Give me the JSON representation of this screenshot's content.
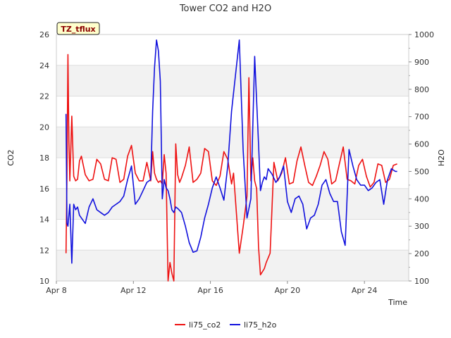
{
  "chart_data": {
    "type": "line",
    "title": "Tower CO2 and H2O",
    "badge": "TZ_tflux",
    "xlabel": "Time",
    "ylabel_left": "CO2",
    "ylabel_right": "H2O",
    "x_range_days": [
      0,
      18.3
    ],
    "x_ticks": [
      {
        "day": 0,
        "label": "Apr 8"
      },
      {
        "day": 4,
        "label": "Apr 12"
      },
      {
        "day": 8,
        "label": "Apr 16"
      },
      {
        "day": 12,
        "label": "Apr 20"
      },
      {
        "day": 16,
        "label": "Apr 24"
      }
    ],
    "y_left": {
      "min": 10,
      "max": 26,
      "ticks": [
        10,
        12,
        14,
        16,
        18,
        20,
        22,
        24,
        26
      ]
    },
    "y_right": {
      "min": 100,
      "max": 1000,
      "ticks": [
        100,
        200,
        300,
        400,
        500,
        600,
        700,
        800,
        900,
        1000
      ]
    },
    "grid": true,
    "legend_position": "bottom-center",
    "series": [
      {
        "name": "li75_co2",
        "axis": "left",
        "color": "#ee1111",
        "x": [
          0.5,
          0.55,
          0.6,
          0.65,
          0.7,
          0.8,
          0.9,
          1.0,
          1.1,
          1.2,
          1.3,
          1.5,
          1.7,
          1.9,
          2.1,
          2.3,
          2.5,
          2.7,
          2.9,
          3.1,
          3.3,
          3.5,
          3.7,
          3.9,
          4.1,
          4.3,
          4.5,
          4.7,
          4.9,
          5.0,
          5.1,
          5.2,
          5.3,
          5.4,
          5.5,
          5.6,
          5.7,
          5.8,
          5.9,
          6.0,
          6.1,
          6.2,
          6.3,
          6.4,
          6.5,
          6.7,
          6.9,
          7.1,
          7.3,
          7.5,
          7.7,
          7.9,
          8.1,
          8.3,
          8.5,
          8.7,
          8.9,
          9.1,
          9.2,
          9.5,
          9.7,
          9.8,
          9.9,
          10.0,
          10.1,
          10.2,
          10.3,
          10.4,
          10.5,
          10.6,
          10.8,
          10.9,
          11.1,
          11.3,
          11.5,
          11.7,
          11.9,
          12.1,
          12.3,
          12.5,
          12.7,
          12.9,
          13.1,
          13.3,
          13.5,
          13.7,
          13.9,
          14.1,
          14.3,
          14.5,
          14.7,
          14.9,
          15.1,
          15.3,
          15.5,
          15.7,
          15.9,
          16.1,
          16.3,
          16.5,
          16.7,
          16.9,
          17.1,
          17.3,
          17.5,
          17.7
        ],
        "values": [
          11.8,
          16.8,
          24.7,
          19.0,
          16.5,
          20.7,
          16.8,
          16.5,
          16.6,
          17.8,
          18.1,
          16.9,
          16.5,
          16.6,
          17.9,
          17.6,
          16.6,
          16.5,
          18.0,
          17.9,
          16.4,
          16.6,
          18.1,
          18.8,
          17.0,
          16.5,
          16.5,
          17.7,
          16.5,
          18.4,
          17.0,
          16.6,
          16.4,
          16.5,
          16.3,
          18.2,
          17.0,
          10.0,
          11.2,
          10.5,
          10.0,
          18.9,
          16.9,
          16.4,
          16.7,
          17.5,
          18.7,
          16.4,
          16.6,
          17.0,
          18.6,
          18.4,
          16.5,
          16.2,
          16.8,
          18.4,
          17.9,
          16.3,
          17.0,
          11.8,
          13.5,
          14.5,
          15.5,
          23.2,
          16.5,
          18.0,
          16.5,
          16.0,
          12.2,
          10.4,
          10.8,
          11.2,
          11.8,
          17.7,
          16.5,
          17.0,
          18.0,
          16.3,
          16.4,
          17.8,
          18.7,
          17.5,
          16.4,
          16.2,
          16.8,
          17.5,
          18.4,
          17.9,
          16.3,
          16.5,
          17.6,
          18.7,
          16.6,
          16.5,
          16.3,
          17.5,
          17.9,
          16.8,
          16.1,
          16.4,
          17.6,
          17.5,
          16.4,
          16.6,
          17.5,
          17.6
        ]
      },
      {
        "name": "li75_h2o",
        "axis": "right",
        "color": "#1111dd",
        "x": [
          0.5,
          0.55,
          0.6,
          0.7,
          0.8,
          0.9,
          1.0,
          1.1,
          1.2,
          1.3,
          1.5,
          1.7,
          1.9,
          2.1,
          2.3,
          2.5,
          2.7,
          2.9,
          3.1,
          3.3,
          3.5,
          3.7,
          3.9,
          4.1,
          4.3,
          4.5,
          4.7,
          4.9,
          5.0,
          5.1,
          5.2,
          5.3,
          5.4,
          5.5,
          5.6,
          5.7,
          5.8,
          5.9,
          6.0,
          6.1,
          6.2,
          6.3,
          6.5,
          6.7,
          6.9,
          7.1,
          7.3,
          7.5,
          7.7,
          7.9,
          8.1,
          8.3,
          8.5,
          8.7,
          8.9,
          9.1,
          9.3,
          9.5,
          9.7,
          9.9,
          10.1,
          10.3,
          10.5,
          10.6,
          10.7,
          10.8,
          10.9,
          11.0,
          11.2,
          11.4,
          11.6,
          11.8,
          12.0,
          12.2,
          12.4,
          12.6,
          12.8,
          13.0,
          13.2,
          13.4,
          13.6,
          13.8,
          14.0,
          14.2,
          14.4,
          14.6,
          14.8,
          15.0,
          15.2,
          15.4,
          15.6,
          15.8,
          16.0,
          16.2,
          16.4,
          16.6,
          16.8,
          17.0,
          17.2,
          17.4,
          17.6,
          17.7
        ],
        "values": [
          710,
          310,
          300,
          380,
          165,
          380,
          360,
          370,
          340,
          330,
          310,
          370,
          400,
          360,
          350,
          340,
          350,
          370,
          380,
          390,
          410,
          470,
          520,
          380,
          400,
          430,
          460,
          470,
          720,
          880,
          980,
          940,
          830,
          400,
          470,
          440,
          430,
          400,
          360,
          350,
          370,
          365,
          350,
          300,
          240,
          205,
          210,
          260,
          330,
          380,
          440,
          480,
          440,
          395,
          520,
          720,
          850,
          980,
          580,
          330,
          400,
          920,
          600,
          430,
          460,
          480,
          470,
          510,
          490,
          460,
          480,
          520,
          390,
          350,
          400,
          410,
          380,
          290,
          330,
          340,
          380,
          450,
          470,
          420,
          390,
          390,
          280,
          230,
          580,
          520,
          470,
          450,
          450,
          430,
          440,
          460,
          470,
          380,
          470,
          510,
          500,
          500
        ]
      }
    ]
  }
}
